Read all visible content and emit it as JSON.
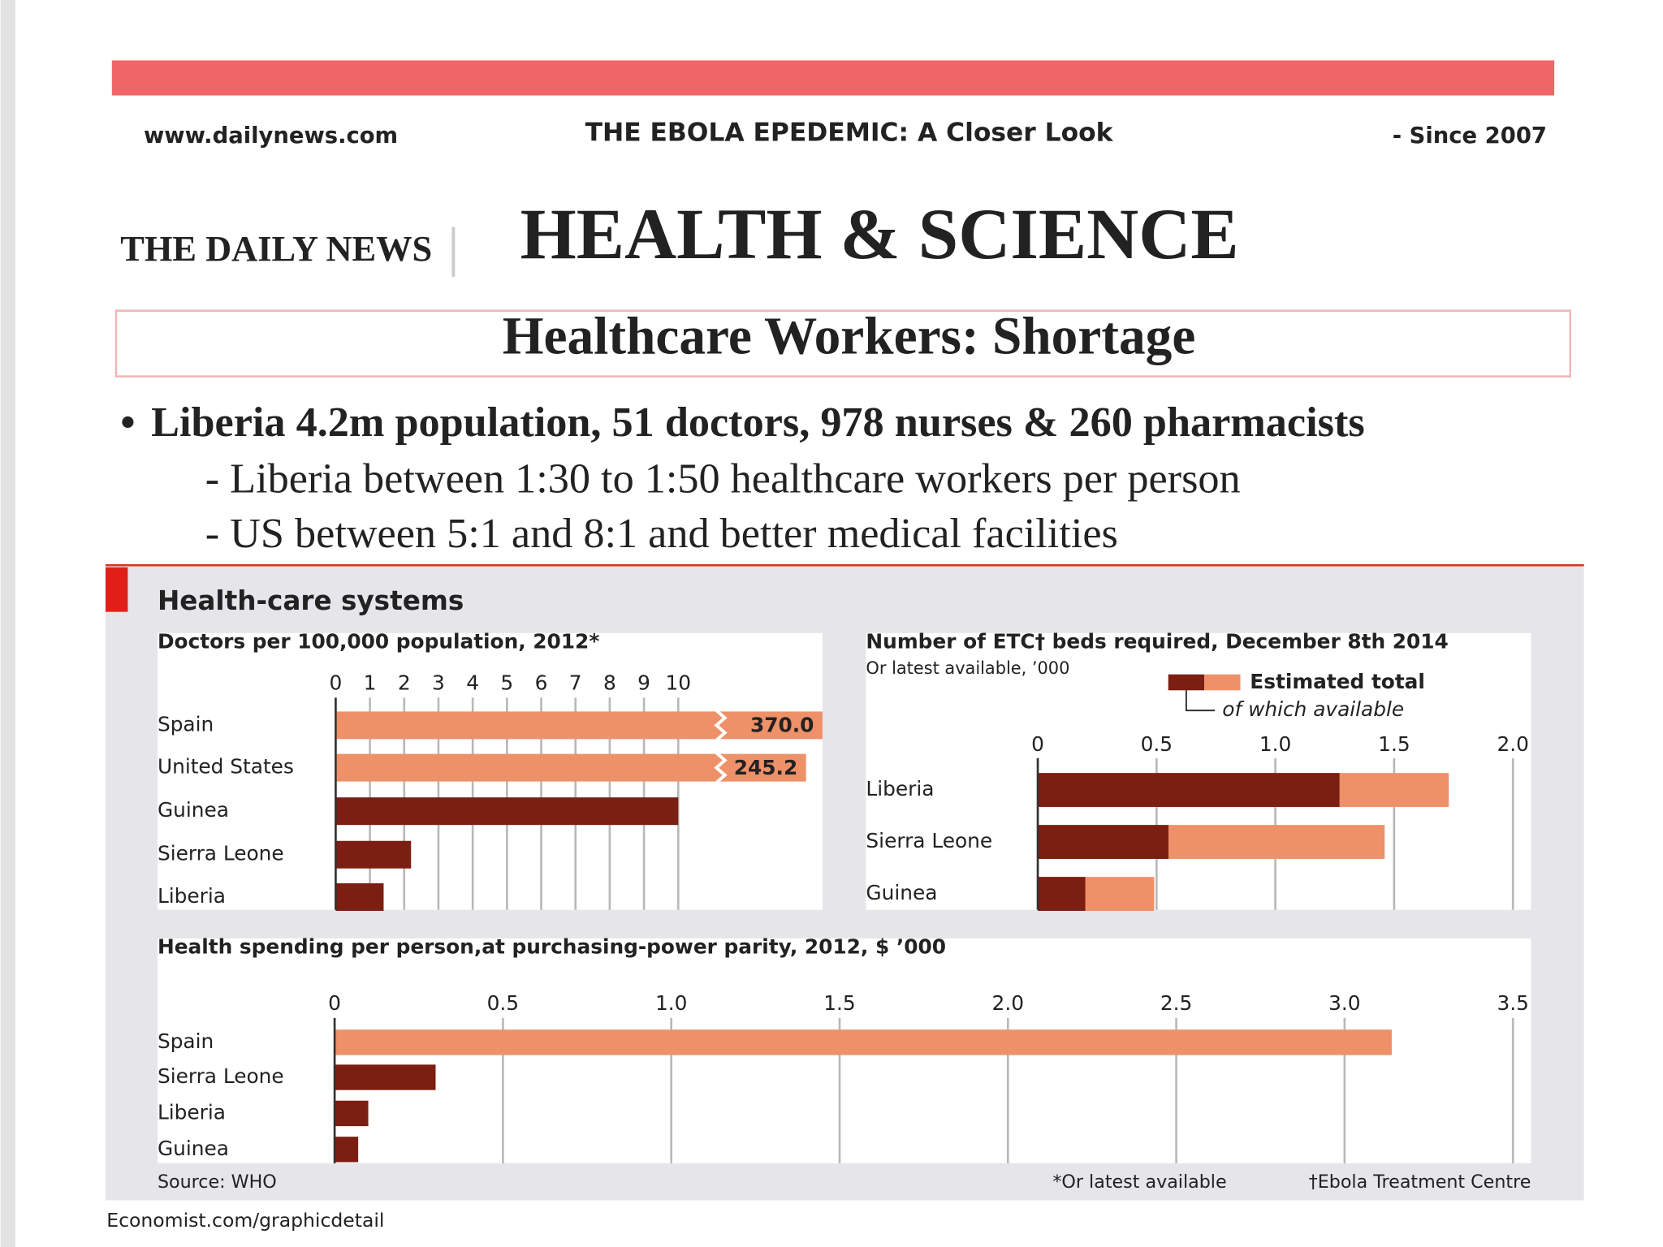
{
  "header": {
    "site": "www.dailynews.com",
    "headline": "THE EBOLA EPEDEMIC: A Closer Look",
    "since": "- Since 2007",
    "masthead": "THE DAILY NEWS",
    "section": "HEALTH & SCIENCE",
    "slide_title": "Healthcare Workers: Shortage"
  },
  "bullets": {
    "main": "Liberia 4.2m population, 51 doctors, 978 nurses & 260 pharmacists",
    "subs": [
      "- Liberia between 1:30 to 1:50 healthcare workers per person",
      "- US between 5:1 and 8:1 and better medical facilities"
    ]
  },
  "infographic": {
    "title": "Health-care systems",
    "source": "Source: WHO",
    "footnotes": [
      "*Or latest available",
      "†Ebola Treatment Centre"
    ],
    "credit": "Economist.com/graphicdetail"
  },
  "chart_data": [
    {
      "type": "bar",
      "title": "Doctors per 100,000 population, 2012*",
      "categories": [
        "Spain",
        "United States",
        "Guinea",
        "Sierra Leone",
        "Liberia"
      ],
      "values": [
        370.0,
        245.2,
        10,
        2.2,
        1.4
      ],
      "value_labels": [
        "370.0",
        "245.2",
        null,
        null,
        null
      ],
      "colors": [
        "#ee9068",
        "#ee9068",
        "#7a1f12",
        "#7a1f12",
        "#7a1f12"
      ],
      "xlim": [
        0,
        10
      ],
      "xticks": [
        0,
        1,
        2,
        3,
        4,
        5,
        6,
        7,
        8,
        9,
        10
      ],
      "grid": true
    },
    {
      "type": "bar",
      "title": "Number of ETC† beds required, December 8th 2014",
      "subtitle": "Or latest available, ’000",
      "categories": [
        "Liberia",
        "Sierra Leone",
        "Guinea"
      ],
      "series": [
        {
          "name": "Estimated total",
          "color": "#ee9068",
          "values": [
            1.73,
            1.46,
            0.49
          ]
        },
        {
          "name": "of which available",
          "color": "#7a1f12",
          "values": [
            1.27,
            0.55,
            0.2
          ]
        }
      ],
      "xlim": [
        0,
        2
      ],
      "xticks": [
        0,
        0.5,
        {
          "value": 1,
          "label": "1.0"
        },
        1.5,
        {
          "value": 2,
          "label": "2.0"
        }
      ],
      "grid": true
    },
    {
      "type": "bar",
      "title": "Health spending per person,at purchasing-power parity, 2012, $ ’000",
      "categories": [
        "Spain",
        "Sierra Leone",
        "Liberia",
        "Guinea"
      ],
      "values": [
        3.14,
        0.3,
        0.1,
        0.07
      ],
      "colors": [
        "#ee9068",
        "#7a1f12",
        "#7a1f12",
        "#7a1f12"
      ],
      "xlim": [
        0,
        3.5
      ],
      "xticks": [
        0,
        0.5,
        {
          "value": 1,
          "label": "1.0"
        },
        1.5,
        {
          "value": 2,
          "label": "2.0"
        },
        2.5,
        {
          "value": 3,
          "label": "3.0"
        },
        3.5
      ],
      "grid": true
    }
  ]
}
